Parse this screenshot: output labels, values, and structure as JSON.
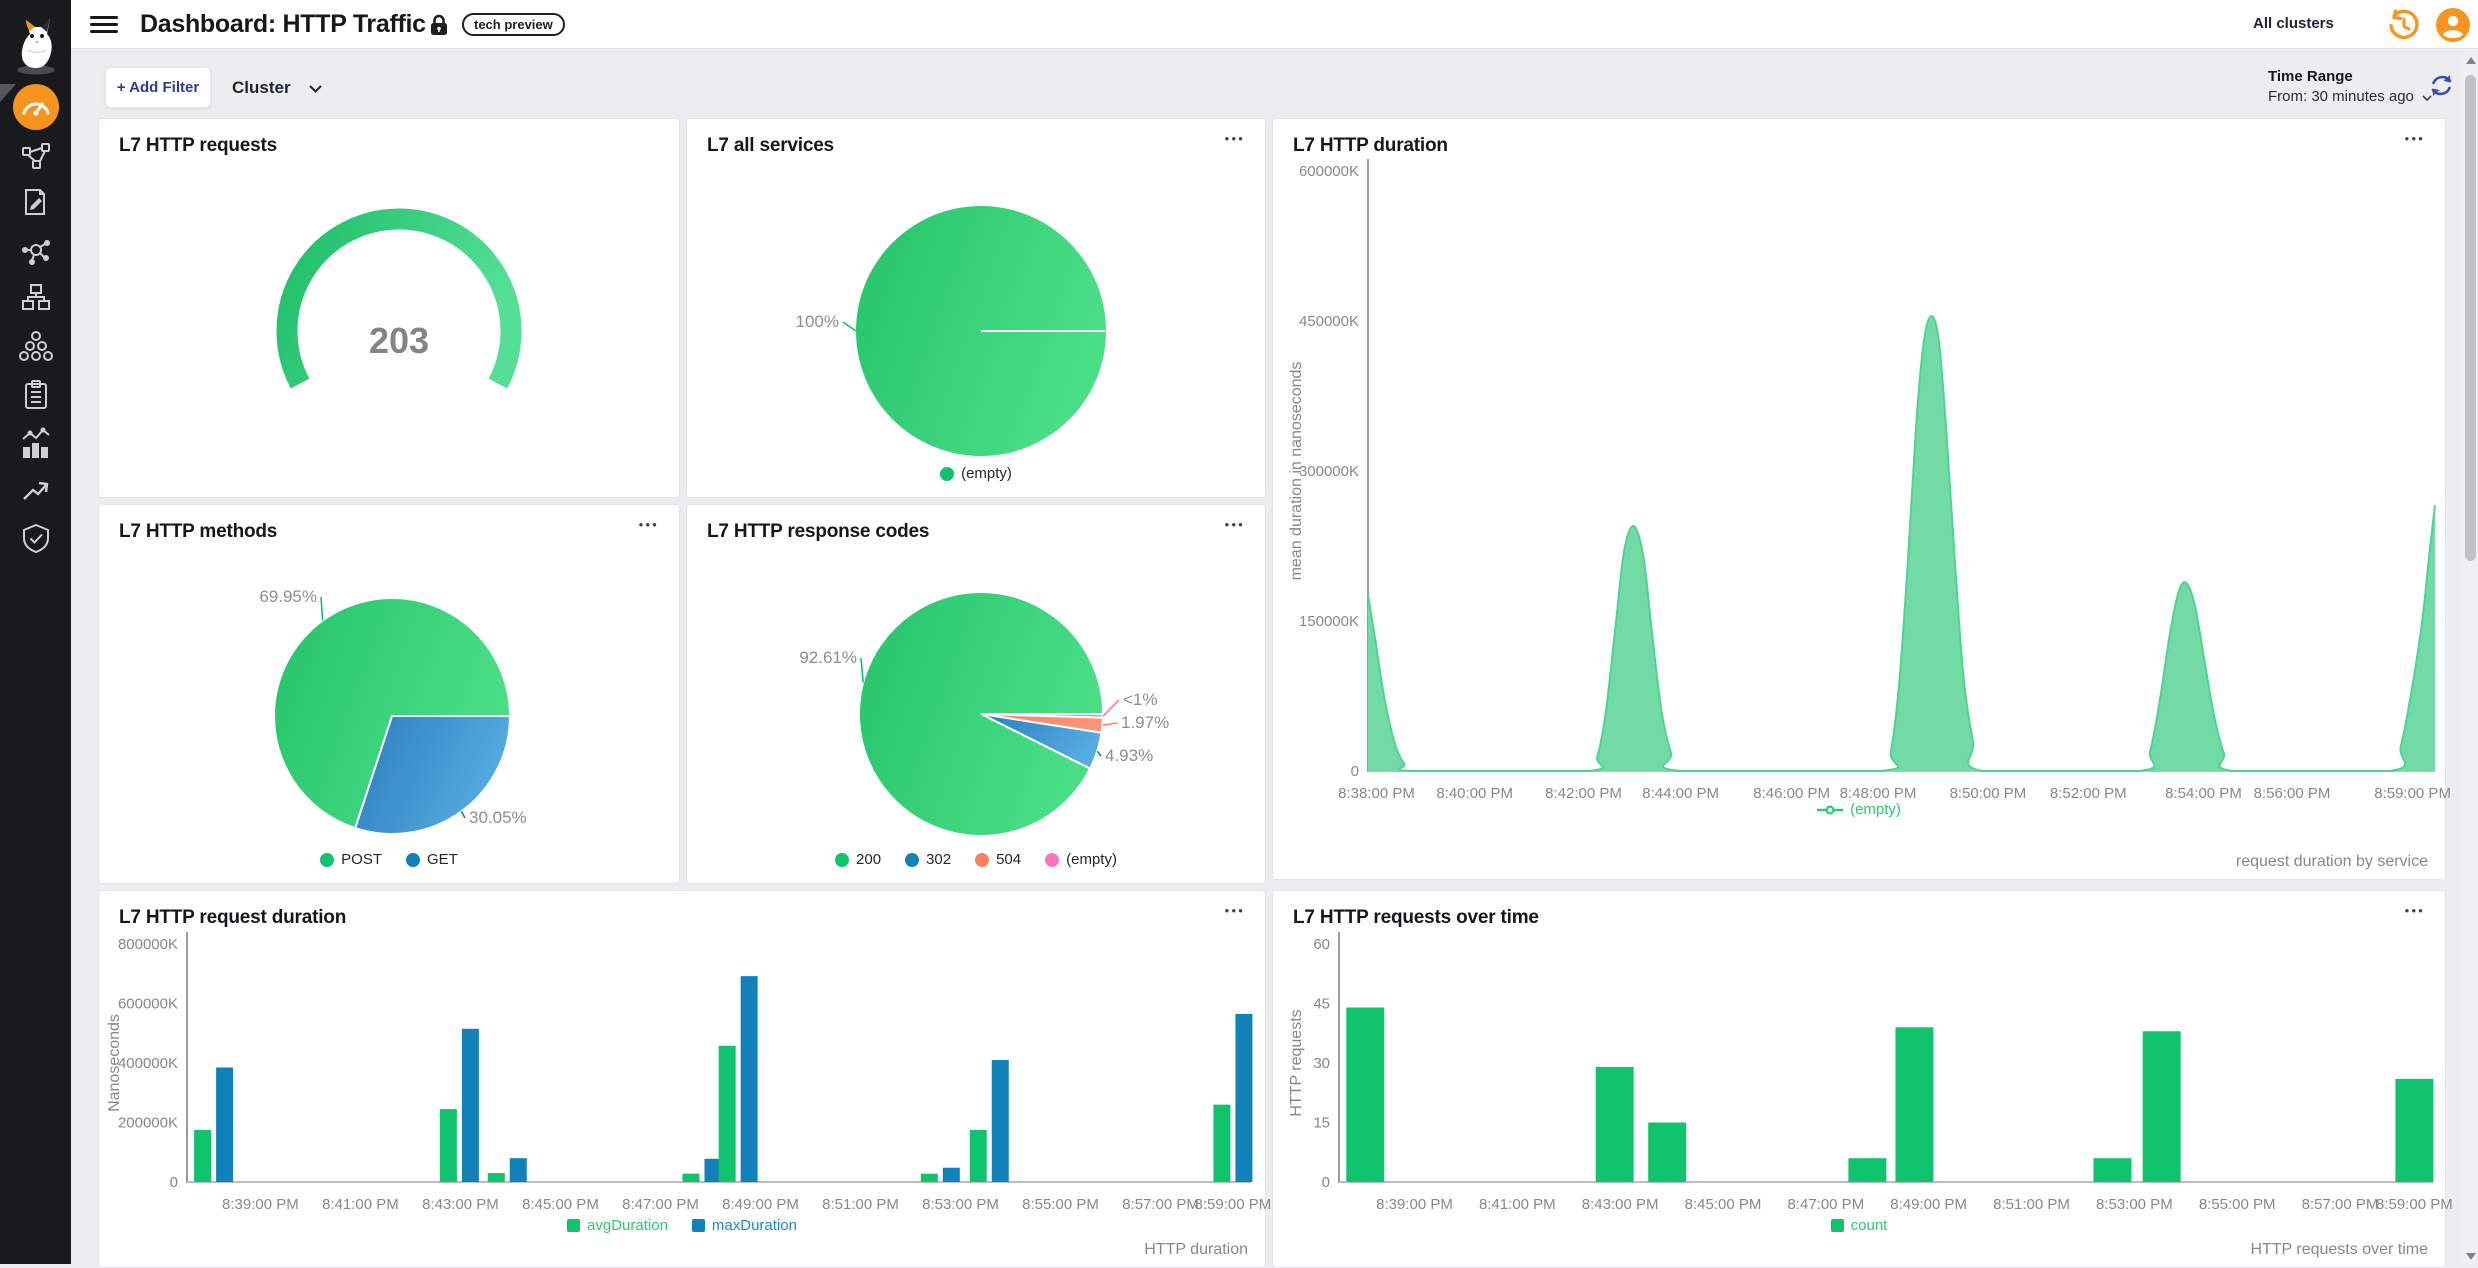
{
  "header": {
    "title": "Dashboard: HTTP Traffic",
    "badge": "tech preview",
    "cluster_selector": "All clusters"
  },
  "filter_bar": {
    "add_filter": "+ Add Filter",
    "group_by": "Cluster",
    "time_range_label": "Time Range",
    "time_range_value": "From: 30 minutes ago"
  },
  "sidebar": {
    "icons": [
      "calico-logo",
      "dashboards",
      "service-graph",
      "policies",
      "endpoints",
      "network-sets",
      "clusters",
      "compliance-reports",
      "activity",
      "timeline",
      "threat-defense"
    ]
  },
  "colors": {
    "green": "#10c46e",
    "blue": "#1181ba",
    "orange": "#fa8164",
    "pink": "#fb74ba",
    "area_fill": "#72dba5",
    "area_stroke": "#4fd392",
    "accent_orange": "#f7941e",
    "indigo": "#2d3c91",
    "tick_gray": "#85888b",
    "dark": "#24272b"
  },
  "chart_data": [
    {
      "id": "l7-http-requests",
      "type": "gauge",
      "title": "L7 HTTP requests",
      "value": "203"
    },
    {
      "id": "l7-all-services",
      "type": "pie",
      "title": "L7 all services",
      "draw_order": [
        0
      ],
      "slices": [
        {
          "label": "(empty)",
          "pct": 100,
          "color": "green",
          "callout": {
            "text": "100%",
            "deg": 180,
            "lx": 152,
            "ly": 208,
            "align": "end"
          }
        }
      ]
    },
    {
      "id": "l7-http-duration",
      "type": "area",
      "title": "L7 HTTP duration",
      "ylabel": "mean duration in nanoseconds",
      "ymax": 600000,
      "yticks": [
        "0",
        "150000K",
        "300000K",
        "450000K",
        "600000K"
      ],
      "xticks": [
        {
          "t": "8:38:00 PM",
          "p": 0.8
        },
        {
          "t": "8:40:00 PM",
          "p": 10.0
        },
        {
          "t": "8:42:00 PM",
          "p": 20.2
        },
        {
          "t": "8:44:00 PM",
          "p": 29.3
        },
        {
          "t": "8:46:00 PM",
          "p": 39.7
        },
        {
          "t": "8:48:00 PM",
          "p": 47.8
        },
        {
          "t": "8:50:00 PM",
          "p": 58.1
        },
        {
          "t": "8:52:00 PM",
          "p": 67.5
        },
        {
          "t": "8:54:00 PM",
          "p": 78.3
        },
        {
          "t": "8:56:00 PM",
          "p": 86.6
        },
        {
          "t": "8:59:00 PM",
          "p": 97.9
        }
      ],
      "series": [
        {
          "name": "(empty)",
          "points": [
            [
              0,
              176000
            ],
            [
              0.7,
              130000
            ],
            [
              1.5,
              75000
            ],
            [
              2.5,
              28000
            ],
            [
              3.4,
              7000
            ],
            [
              4.3,
              0
            ],
            [
              20.5,
              0
            ],
            [
              21.5,
              15000
            ],
            [
              22.3,
              60000
            ],
            [
              23.2,
              145000
            ],
            [
              24.0,
              220000
            ],
            [
              24.9,
              245000
            ],
            [
              25.8,
              215000
            ],
            [
              26.6,
              140000
            ],
            [
              27.5,
              60000
            ],
            [
              28.4,
              18000
            ],
            [
              29.3,
              0
            ],
            [
              48.0,
              0
            ],
            [
              49.0,
              20000
            ],
            [
              49.8,
              90000
            ],
            [
              50.6,
              210000
            ],
            [
              51.4,
              350000
            ],
            [
              52.1,
              430000
            ],
            [
              52.8,
              455000
            ],
            [
              53.5,
              430000
            ],
            [
              54.2,
              340000
            ],
            [
              55.0,
              210000
            ],
            [
              55.8,
              95000
            ],
            [
              56.7,
              30000
            ],
            [
              57.6,
              0
            ],
            [
              72.3,
              0
            ],
            [
              73.3,
              20000
            ],
            [
              74.2,
              70000
            ],
            [
              75.2,
              140000
            ],
            [
              76.0,
              180000
            ],
            [
              76.7,
              188000
            ],
            [
              77.5,
              165000
            ],
            [
              78.4,
              110000
            ],
            [
              79.3,
              55000
            ],
            [
              80.2,
              18000
            ],
            [
              81.2,
              0
            ],
            [
              95.8,
              0
            ],
            [
              96.8,
              25000
            ],
            [
              97.8,
              80000
            ],
            [
              98.8,
              150000
            ],
            [
              99.4,
              210000
            ],
            [
              100,
              266000
            ]
          ]
        }
      ],
      "caption": "request duration by service"
    },
    {
      "id": "l7-http-methods",
      "type": "pie",
      "title": "L7 HTTP methods",
      "draw_order": [
        1,
        0
      ],
      "slices": [
        {
          "label": "POST",
          "pct": 69.95,
          "color": "green",
          "callout": {
            "text": "69.95%",
            "deg": 234,
            "lx": 218,
            "ly": 97,
            "align": "end"
          }
        },
        {
          "label": "GET",
          "pct": 30.05,
          "color": "blue",
          "callout": {
            "text": "30.05%",
            "deg": 54,
            "lx": 370,
            "ly": 318,
            "align": "start"
          }
        }
      ]
    },
    {
      "id": "l7-http-response-codes",
      "type": "pie",
      "title": "L7 HTTP response codes",
      "draw_order": [
        3,
        2,
        1,
        0
      ],
      "slices": [
        {
          "label": "200",
          "pct": 92.61,
          "color": "green",
          "callout": {
            "text": "92.61%",
            "deg": 195,
            "lx": 170,
            "ly": 158,
            "align": "end"
          }
        },
        {
          "label": "302",
          "pct": 4.93,
          "color": "blue",
          "callout": {
            "text": "4.93%",
            "deg": 17.7,
            "lx": 418,
            "ly": 256,
            "align": "start"
          }
        },
        {
          "label": "504",
          "pct": 1.97,
          "color": "orange",
          "callout": {
            "text": "1.97%",
            "deg": 5.3,
            "lx": 434,
            "ly": 223,
            "align": "start"
          }
        },
        {
          "label": "(empty)",
          "pct": 0.49,
          "color": "pink",
          "callout": {
            "text": "<1%",
            "deg": 1.0,
            "lx": 436,
            "ly": 200,
            "align": "start"
          }
        }
      ]
    },
    {
      "id": "l7-http-request-duration",
      "type": "bar",
      "title": "L7 HTTP request duration",
      "ylabel": "Nanoseconds",
      "ymax": 800000,
      "yticks": [
        "0",
        "200000K",
        "400000K",
        "600000K",
        "800000K"
      ],
      "xticks": [
        {
          "t": "8:39:00 PM",
          "p": 6.9
        },
        {
          "t": "8:41:00 PM",
          "p": 16.3
        },
        {
          "t": "8:43:00 PM",
          "p": 25.7
        },
        {
          "t": "8:45:00 PM",
          "p": 35.1
        },
        {
          "t": "8:47:00 PM",
          "p": 44.5
        },
        {
          "t": "8:49:00 PM",
          "p": 53.9
        },
        {
          "t": "8:51:00 PM",
          "p": 63.3
        },
        {
          "t": "8:53:00 PM",
          "p": 72.7
        },
        {
          "t": "8:55:00 PM",
          "p": 82.1
        },
        {
          "t": "8:57:00 PM",
          "p": 91.5
        },
        {
          "t": "8:59:00 PM",
          "p": 98.3
        }
      ],
      "group_x_pct": [
        2.5,
        25.6,
        30.1,
        48.4,
        51.8,
        70.8,
        75.4,
        98.3
      ],
      "series": [
        {
          "name": "avgDuration",
          "color": "green",
          "values": [
            175000,
            245000,
            30000,
            28000,
            458000,
            28000,
            175000,
            260000
          ]
        },
        {
          "name": "maxDuration",
          "color": "blue",
          "values": [
            385000,
            515000,
            80000,
            78000,
            692000,
            48000,
            410000,
            565000
          ]
        }
      ],
      "caption": "HTTP duration"
    },
    {
      "id": "l7-http-requests-over-time",
      "type": "bar",
      "title": "L7 HTTP requests over time",
      "ylabel": "HTTP requests",
      "ymax": 60,
      "yticks": [
        "0",
        "15",
        "30",
        "45",
        "60"
      ],
      "xticks": [
        {
          "t": "8:39:00 PM",
          "p": 6.9
        },
        {
          "t": "8:41:00 PM",
          "p": 16.3
        },
        {
          "t": "8:43:00 PM",
          "p": 25.7
        },
        {
          "t": "8:45:00 PM",
          "p": 35.1
        },
        {
          "t": "8:47:00 PM",
          "p": 44.5
        },
        {
          "t": "8:49:00 PM",
          "p": 53.9
        },
        {
          "t": "8:51:00 PM",
          "p": 63.3
        },
        {
          "t": "8:53:00 PM",
          "p": 72.7
        },
        {
          "t": "8:55:00 PM",
          "p": 82.1
        },
        {
          "t": "8:57:00 PM",
          "p": 91.5
        },
        {
          "t": "8:59:00 PM",
          "p": 98.3
        }
      ],
      "group_x_pct": [
        2.4,
        25.2,
        30.0,
        48.3,
        52.6,
        70.7,
        75.2,
        98.3
      ],
      "series": [
        {
          "name": "count",
          "color": "green",
          "values": [
            44,
            29,
            15,
            6,
            39,
            6,
            38,
            26
          ]
        }
      ],
      "caption": "HTTP requests over time"
    }
  ]
}
